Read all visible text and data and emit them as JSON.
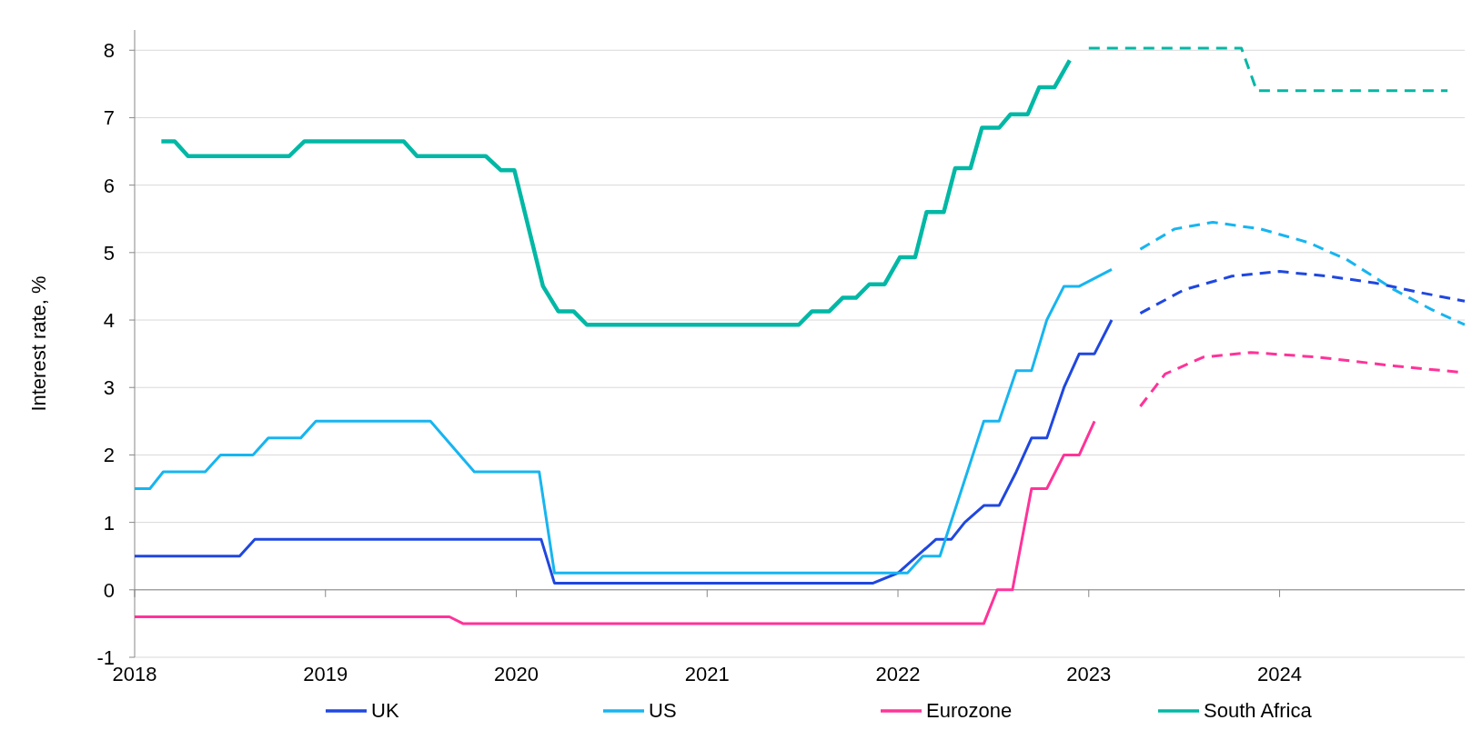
{
  "chart_data": {
    "type": "line",
    "ylabel": "Interest rate, %",
    "xlim": [
      2018,
      2024.97
    ],
    "xticks": [
      2018,
      2019,
      2020,
      2021,
      2022,
      2023,
      2024
    ],
    "ylim": [
      -1,
      8.3
    ],
    "yticks": [
      -1,
      0,
      1,
      2,
      3,
      4,
      5,
      6,
      7,
      8
    ],
    "grid": "y",
    "legend": "bottom",
    "series": [
      {
        "name": "UK",
        "color": "#1f47e0",
        "x": [
          2018,
          2018.55,
          2018.63,
          2020.13,
          2020.2,
          2021.87,
          2022.0,
          2022.1,
          2022.2,
          2022.28,
          2022.35,
          2022.45,
          2022.53,
          2022.62,
          2022.7,
          2022.78,
          2022.87,
          2022.95,
          2023.03,
          2023.12
        ],
        "values": [
          0.5,
          0.5,
          0.75,
          0.75,
          0.1,
          0.1,
          0.25,
          0.5,
          0.75,
          0.75,
          1.0,
          1.25,
          1.25,
          1.75,
          2.25,
          2.25,
          3.0,
          3.5,
          3.5,
          4.0
        ]
      },
      {
        "name": "US",
        "color": "#17b5f0",
        "x": [
          2018,
          2018.08,
          2018.15,
          2018.37,
          2018.45,
          2018.62,
          2018.7,
          2018.87,
          2018.95,
          2019.55,
          2019.78,
          2020.12,
          2020.2,
          2022.05,
          2022.13,
          2022.22,
          2022.45,
          2022.53,
          2022.62,
          2022.7,
          2022.78,
          2022.87,
          2022.95,
          2023.12
        ],
        "values": [
          1.5,
          1.5,
          1.75,
          1.75,
          2.0,
          2.0,
          2.25,
          2.25,
          2.5,
          2.5,
          1.75,
          1.75,
          0.25,
          0.25,
          0.5,
          0.5,
          2.5,
          2.5,
          3.25,
          3.25,
          4.0,
          4.5,
          4.5,
          4.75
        ]
      },
      {
        "name": "Eurozone",
        "color": "#ff3399",
        "x": [
          2018,
          2019.65,
          2019.72,
          2022.45,
          2022.52,
          2022.6,
          2022.7,
          2022.78,
          2022.87,
          2022.95,
          2023.03
        ],
        "values": [
          -0.4,
          -0.4,
          -0.5,
          -0.5,
          0.0,
          0.0,
          1.5,
          1.5,
          2.0,
          2.0,
          2.5
        ]
      },
      {
        "name": "South Africa",
        "color": "#00b8a5",
        "x": [
          2018.14,
          2018.21,
          2018.28,
          2018.81,
          2018.89,
          2019.41,
          2019.48,
          2019.84,
          2019.92,
          2019.99,
          2020.14,
          2020.22,
          2020.3,
          2020.37,
          2021.48,
          2021.55,
          2021.64,
          2021.71,
          2021.78,
          2021.85,
          2021.93,
          2022.01,
          2022.09,
          2022.15,
          2022.24,
          2022.3,
          2022.38,
          2022.44,
          2022.53,
          2022.59,
          2022.68,
          2022.74,
          2022.82,
          2022.9
        ],
        "values": [
          6.65,
          6.65,
          6.43,
          6.43,
          6.65,
          6.65,
          6.43,
          6.43,
          6.22,
          6.22,
          4.5,
          4.13,
          4.13,
          3.93,
          3.93,
          4.13,
          4.13,
          4.33,
          4.33,
          4.53,
          4.53,
          4.93,
          4.93,
          5.6,
          5.6,
          6.25,
          6.25,
          6.85,
          6.85,
          7.05,
          7.05,
          7.45,
          7.45,
          7.85
        ]
      },
      {
        "color": "#1f47e0",
        "line_style": "dashed",
        "x": [
          2023.27,
          2023.5,
          2023.75,
          2024.0,
          2024.25,
          2024.5,
          2024.75,
          2024.97
        ],
        "values": [
          4.1,
          4.45,
          4.65,
          4.72,
          4.65,
          4.55,
          4.4,
          4.28
        ]
      },
      {
        "color": "#17b5f0",
        "line_style": "dashed",
        "x": [
          2023.27,
          2023.45,
          2023.65,
          2023.9,
          2024.15,
          2024.35,
          2024.6,
          2024.8,
          2024.97
        ],
        "values": [
          5.05,
          5.35,
          5.45,
          5.35,
          5.15,
          4.9,
          4.45,
          4.15,
          3.93
        ]
      },
      {
        "color": "#ff3399",
        "line_style": "dashed",
        "x": [
          2023.27,
          2023.4,
          2023.6,
          2023.85,
          2024.2,
          2024.6,
          2024.97
        ],
        "values": [
          2.72,
          3.2,
          3.45,
          3.52,
          3.45,
          3.32,
          3.22
        ]
      },
      {
        "color": "#00b8a5",
        "line_style": "dashed",
        "x": [
          2023.0,
          2023.8,
          2023.88,
          2024.88
        ],
        "values": [
          8.03,
          8.03,
          7.4,
          7.4
        ]
      }
    ]
  }
}
